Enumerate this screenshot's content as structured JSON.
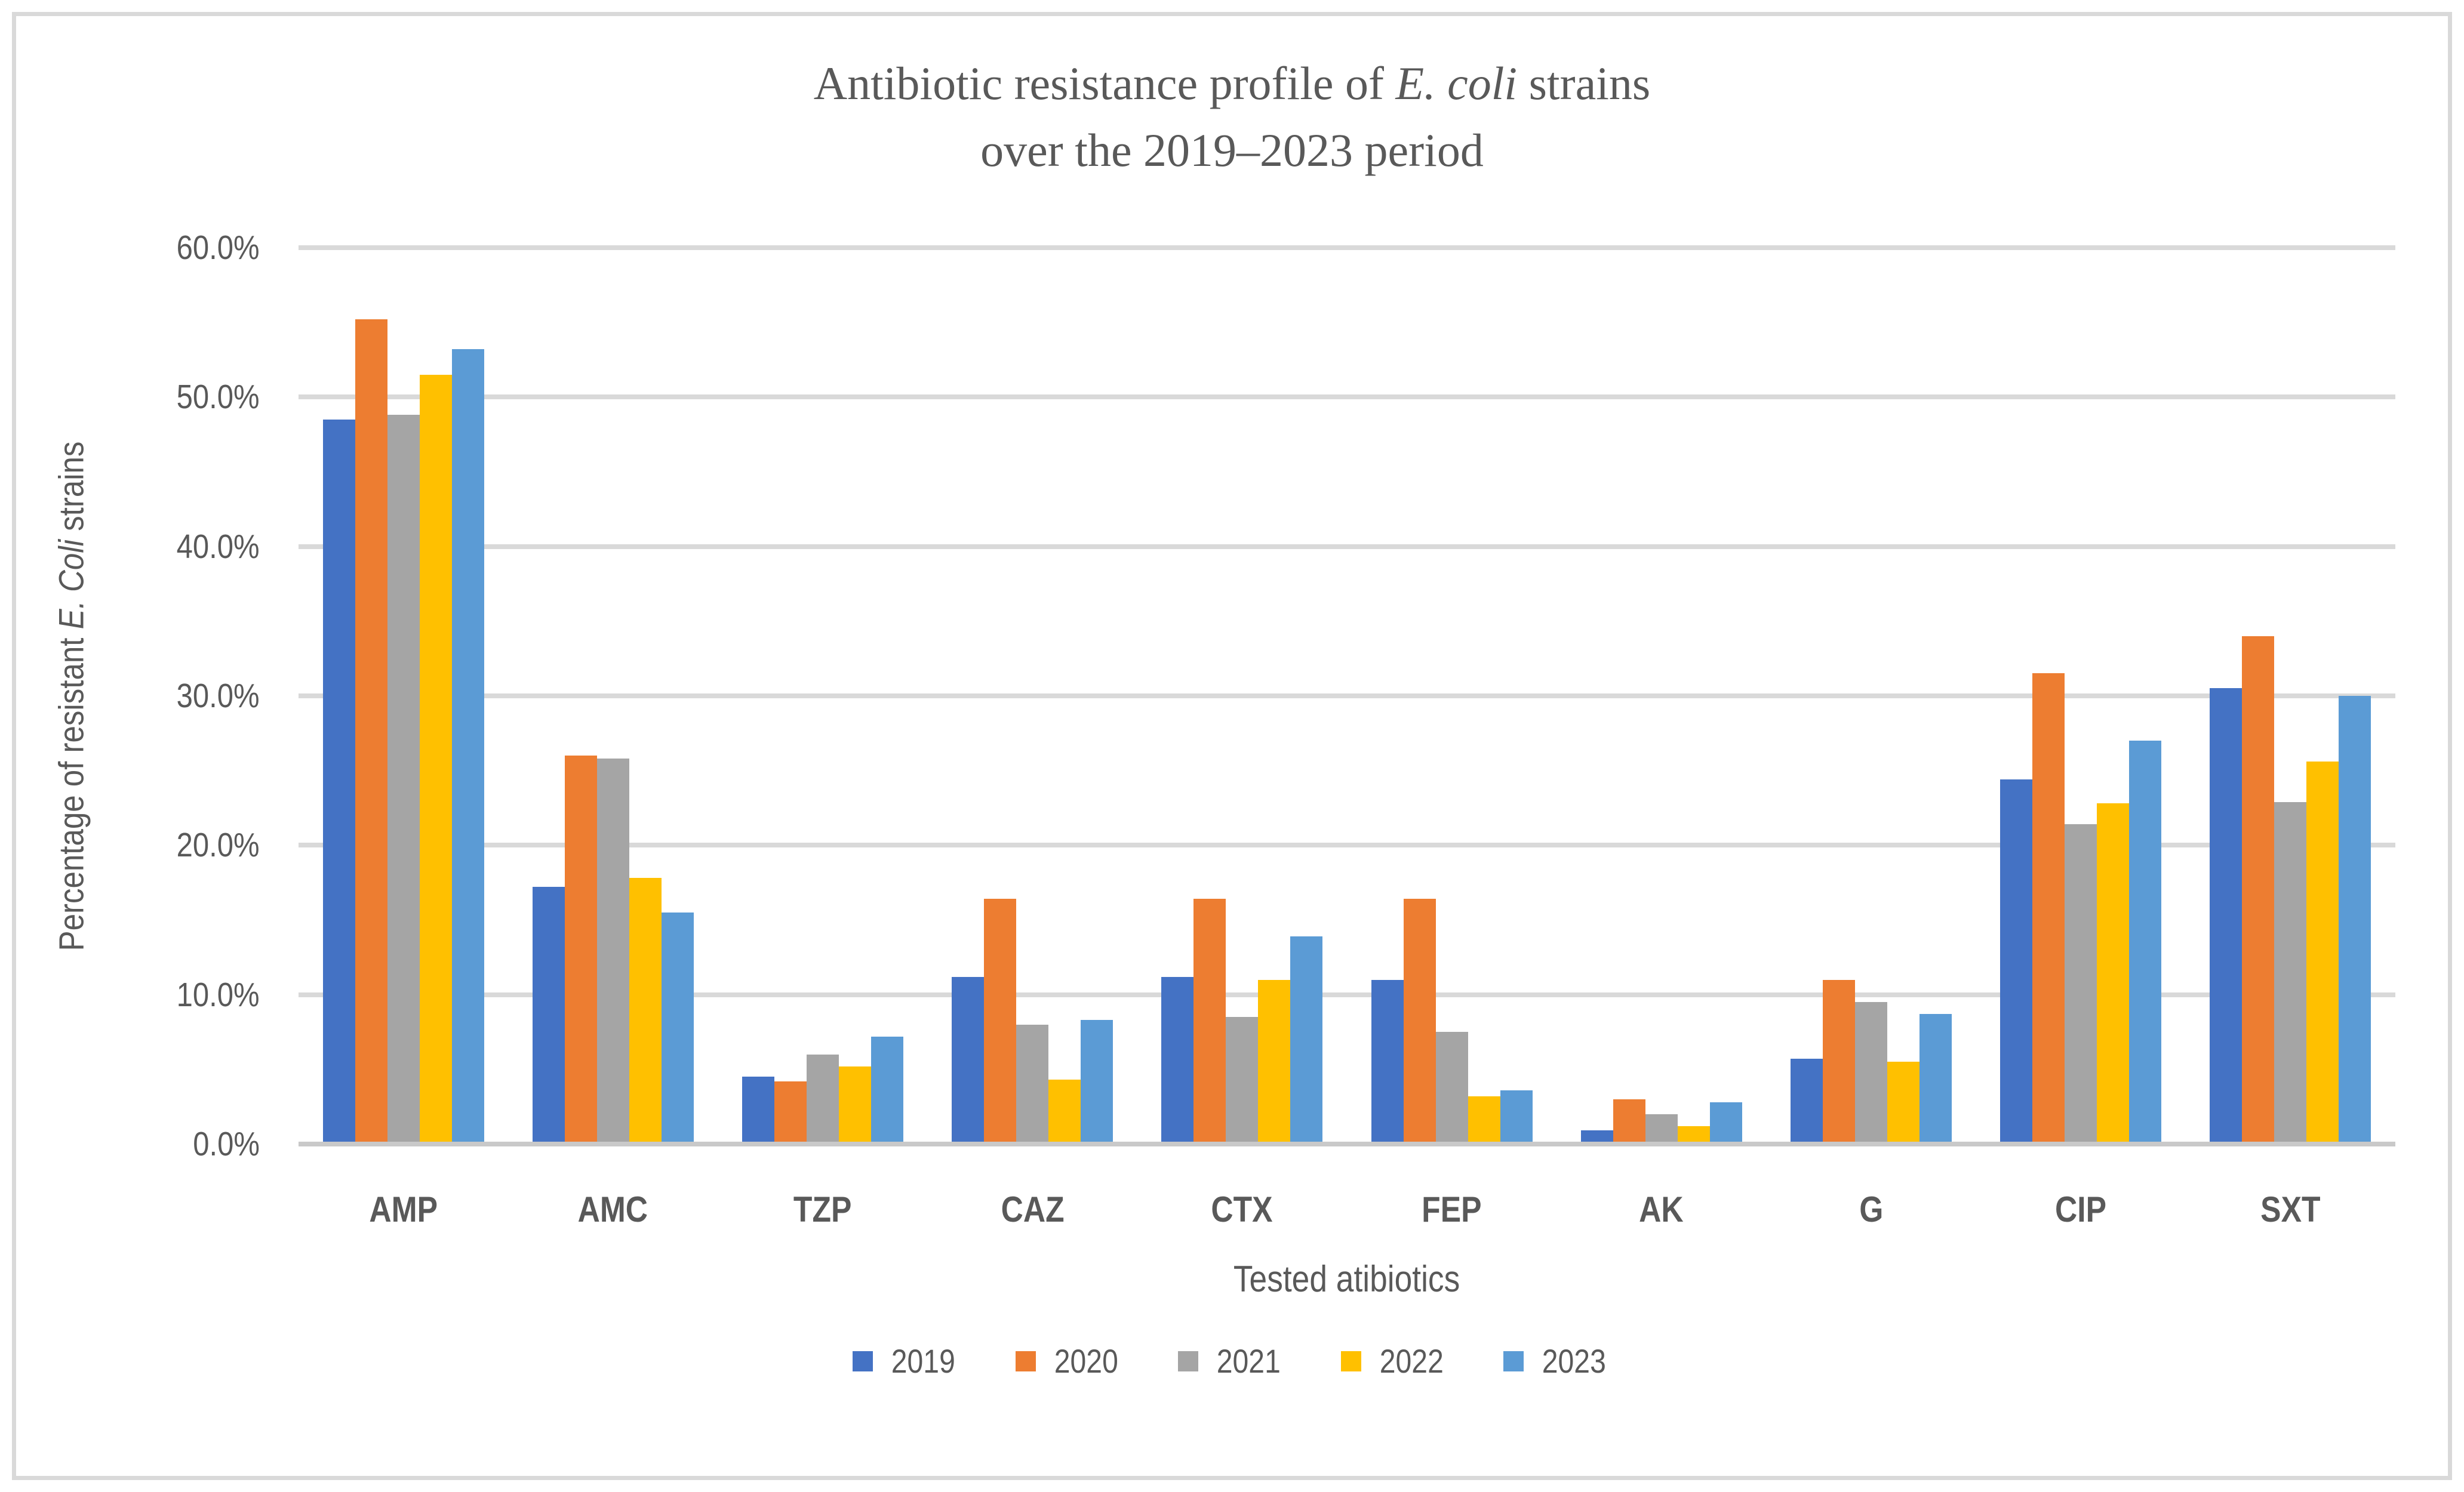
{
  "title": {
    "line1_pre": "Antibiotic resistance profile of ",
    "line1_italic": "E. coli",
    "line1_post": " strains",
    "line2": "over the 2019–2023 period"
  },
  "y_axis": {
    "title_pre": "Percentage of resistant ",
    "title_italic": "E. Coli",
    "title_post": " strains",
    "tick_labels": [
      "0.0%",
      "10.0%",
      "20.0%",
      "30.0%",
      "40.0%",
      "50.0%",
      "60.0%"
    ]
  },
  "x_axis": {
    "title": "Tested atibiotics"
  },
  "legend": {
    "entries": [
      "2019",
      "2020",
      "2021",
      "2022",
      "2023"
    ]
  },
  "colors": {
    "series_2019": "#4472C4",
    "series_2020": "#ED7D31",
    "series_2021": "#A5A5A5",
    "series_2022": "#FFC000",
    "series_2023": "#5B9BD5",
    "gridline": "#D9D9D9",
    "axis_line": "#C9C9C9",
    "text": "#595959"
  },
  "chart_data": {
    "type": "bar",
    "title": "Antibiotic resistance profile of E. coli strains over the 2019–2023 period",
    "xlabel": "Tested atibiotics",
    "ylabel": "Percentage of resistant E. Coli strains",
    "ylim": [
      0,
      60
    ],
    "y_step": 10,
    "y_tick_suffix": ".0%",
    "grid": true,
    "legend_position": "bottom",
    "categories": [
      "AMP",
      "AMC",
      "TZP",
      "CAZ",
      "CTX",
      "FEP",
      "AK",
      "G",
      "CIP",
      "SXT"
    ],
    "series": [
      {
        "name": "2019",
        "color": "#4472C4",
        "values": [
          48.5,
          17.2,
          4.5,
          11.2,
          11.2,
          11.0,
          0.9,
          5.7,
          24.4,
          30.5
        ]
      },
      {
        "name": "2020",
        "color": "#ED7D31",
        "values": [
          55.2,
          26.0,
          4.2,
          16.4,
          16.4,
          16.4,
          3.0,
          11.0,
          31.5,
          34.0
        ]
      },
      {
        "name": "2021",
        "color": "#A5A5A5",
        "values": [
          48.8,
          25.8,
          6.0,
          8.0,
          8.5,
          7.5,
          2.0,
          9.5,
          21.4,
          22.9
        ]
      },
      {
        "name": "2022",
        "color": "#FFC000",
        "values": [
          51.5,
          17.8,
          5.2,
          4.3,
          11.0,
          3.2,
          1.2,
          5.5,
          22.8,
          25.6
        ]
      },
      {
        "name": "2023",
        "color": "#5B9BD5",
        "values": [
          53.2,
          15.5,
          7.2,
          8.3,
          13.9,
          3.6,
          2.8,
          8.7,
          27.0,
          30.0
        ]
      }
    ]
  }
}
